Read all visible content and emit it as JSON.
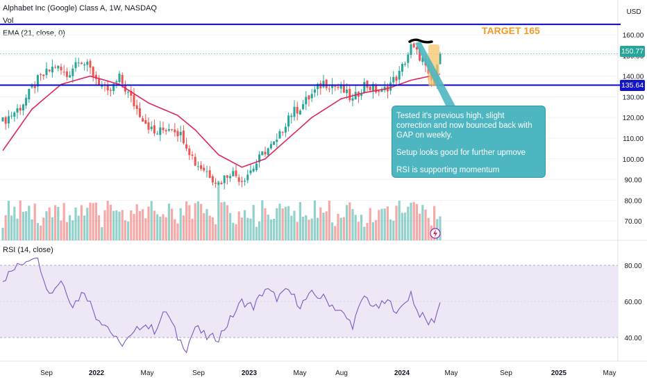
{
  "header": {
    "symbol_line": "Alphabet Inc (Google) Class A, 1W, NASDAQ",
    "vol_label": "Vol",
    "ema_label": "EMA (21, close, 0)",
    "rsi_label": "RSI (14, close)",
    "currency": "USD"
  },
  "annotations": {
    "target": "TARGET 165",
    "callout": [
      "Tested it's previous high, slight correction and now bounced back with GAP on weekly.",
      "Setup looks good for further upmove",
      "RSI is supporting momentum"
    ]
  },
  "price_tags": {
    "last_price": "150.77",
    "support_level": "135.64"
  },
  "colors": {
    "up": "#26a69a",
    "down": "#ef5350",
    "ema": "#e0245e",
    "level_line": "#1414c8",
    "rsi_line": "#7e57c2",
    "rsi_band": "#ede7f6",
    "highlight": "#f7c66b",
    "arrow": "#4db6c1"
  },
  "chart_data": [
    {
      "type": "candlestick",
      "title": "Alphabet Inc (Google) Class A, 1W, NASDAQ",
      "x_ticks": [
        "Sep",
        "2022",
        "May",
        "Sep",
        "2023",
        "May",
        "Aug",
        "2024",
        "May",
        "Sep",
        "2025",
        "May"
      ],
      "y_ticks": [
        70,
        80,
        90,
        100,
        110,
        120,
        130,
        140,
        150,
        160
      ],
      "ylim": [
        66,
        168
      ],
      "horizontal_levels": [
        165,
        135.64
      ],
      "last_price": 150.77,
      "close_waypoints": [
        [
          0,
          118
        ],
        [
          6,
          125
        ],
        [
          12,
          138
        ],
        [
          18,
          145
        ],
        [
          22,
          140
        ],
        [
          26,
          149
        ],
        [
          30,
          143
        ],
        [
          36,
          131
        ],
        [
          40,
          139
        ],
        [
          46,
          124
        ],
        [
          52,
          112
        ],
        [
          58,
          116
        ],
        [
          62,
          110
        ],
        [
          66,
          98
        ],
        [
          70,
          94
        ],
        [
          74,
          88
        ],
        [
          78,
          94
        ],
        [
          82,
          90
        ],
        [
          86,
          96
        ],
        [
          90,
          104
        ],
        [
          94,
          108
        ],
        [
          98,
          121
        ],
        [
          102,
          125
        ],
        [
          106,
          131
        ],
        [
          110,
          137
        ],
        [
          116,
          134
        ],
        [
          120,
          128
        ],
        [
          124,
          136
        ],
        [
          130,
          132
        ],
        [
          136,
          141
        ],
        [
          140,
          154
        ],
        [
          144,
          148
        ],
        [
          146,
          139
        ],
        [
          148,
          136
        ],
        [
          150,
          151
        ]
      ],
      "ema": {
        "label": "EMA (21, close, 0)",
        "waypoints": [
          [
            0,
            104
          ],
          [
            10,
            124
          ],
          [
            20,
            136
          ],
          [
            30,
            140
          ],
          [
            40,
            136
          ],
          [
            50,
            127
          ],
          [
            60,
            121
          ],
          [
            66,
            114
          ],
          [
            74,
            102
          ],
          [
            82,
            96
          ],
          [
            90,
            100
          ],
          [
            98,
            110
          ],
          [
            106,
            120
          ],
          [
            116,
            129
          ],
          [
            124,
            132
          ],
          [
            132,
            134
          ],
          [
            140,
            138
          ],
          [
            150,
            141
          ]
        ]
      },
      "volume": {
        "label": "Vol"
      }
    },
    {
      "type": "line",
      "title": "RSI (14, close)",
      "y_ticks": [
        40,
        60,
        80
      ],
      "ylim": [
        28,
        92
      ],
      "band": [
        40,
        80
      ],
      "waypoints": [
        [
          0,
          72
        ],
        [
          4,
          78
        ],
        [
          8,
          83
        ],
        [
          11,
          86
        ],
        [
          13,
          79
        ],
        [
          16,
          64
        ],
        [
          20,
          72
        ],
        [
          24,
          58
        ],
        [
          28,
          66
        ],
        [
          32,
          52
        ],
        [
          36,
          46
        ],
        [
          40,
          36
        ],
        [
          44,
          40
        ],
        [
          48,
          48
        ],
        [
          52,
          44
        ],
        [
          56,
          55
        ],
        [
          60,
          40
        ],
        [
          63,
          34
        ],
        [
          66,
          46
        ],
        [
          70,
          40
        ],
        [
          74,
          40
        ],
        [
          78,
          50
        ],
        [
          82,
          60
        ],
        [
          86,
          57
        ],
        [
          90,
          67
        ],
        [
          94,
          62
        ],
        [
          98,
          66
        ],
        [
          102,
          58
        ],
        [
          106,
          64
        ],
        [
          110,
          62
        ],
        [
          116,
          54
        ],
        [
          120,
          47
        ],
        [
          124,
          63
        ],
        [
          128,
          56
        ],
        [
          132,
          60
        ],
        [
          136,
          54
        ],
        [
          140,
          65
        ],
        [
          142,
          55
        ],
        [
          146,
          48
        ],
        [
          148,
          50
        ],
        [
          150,
          59
        ]
      ]
    }
  ]
}
